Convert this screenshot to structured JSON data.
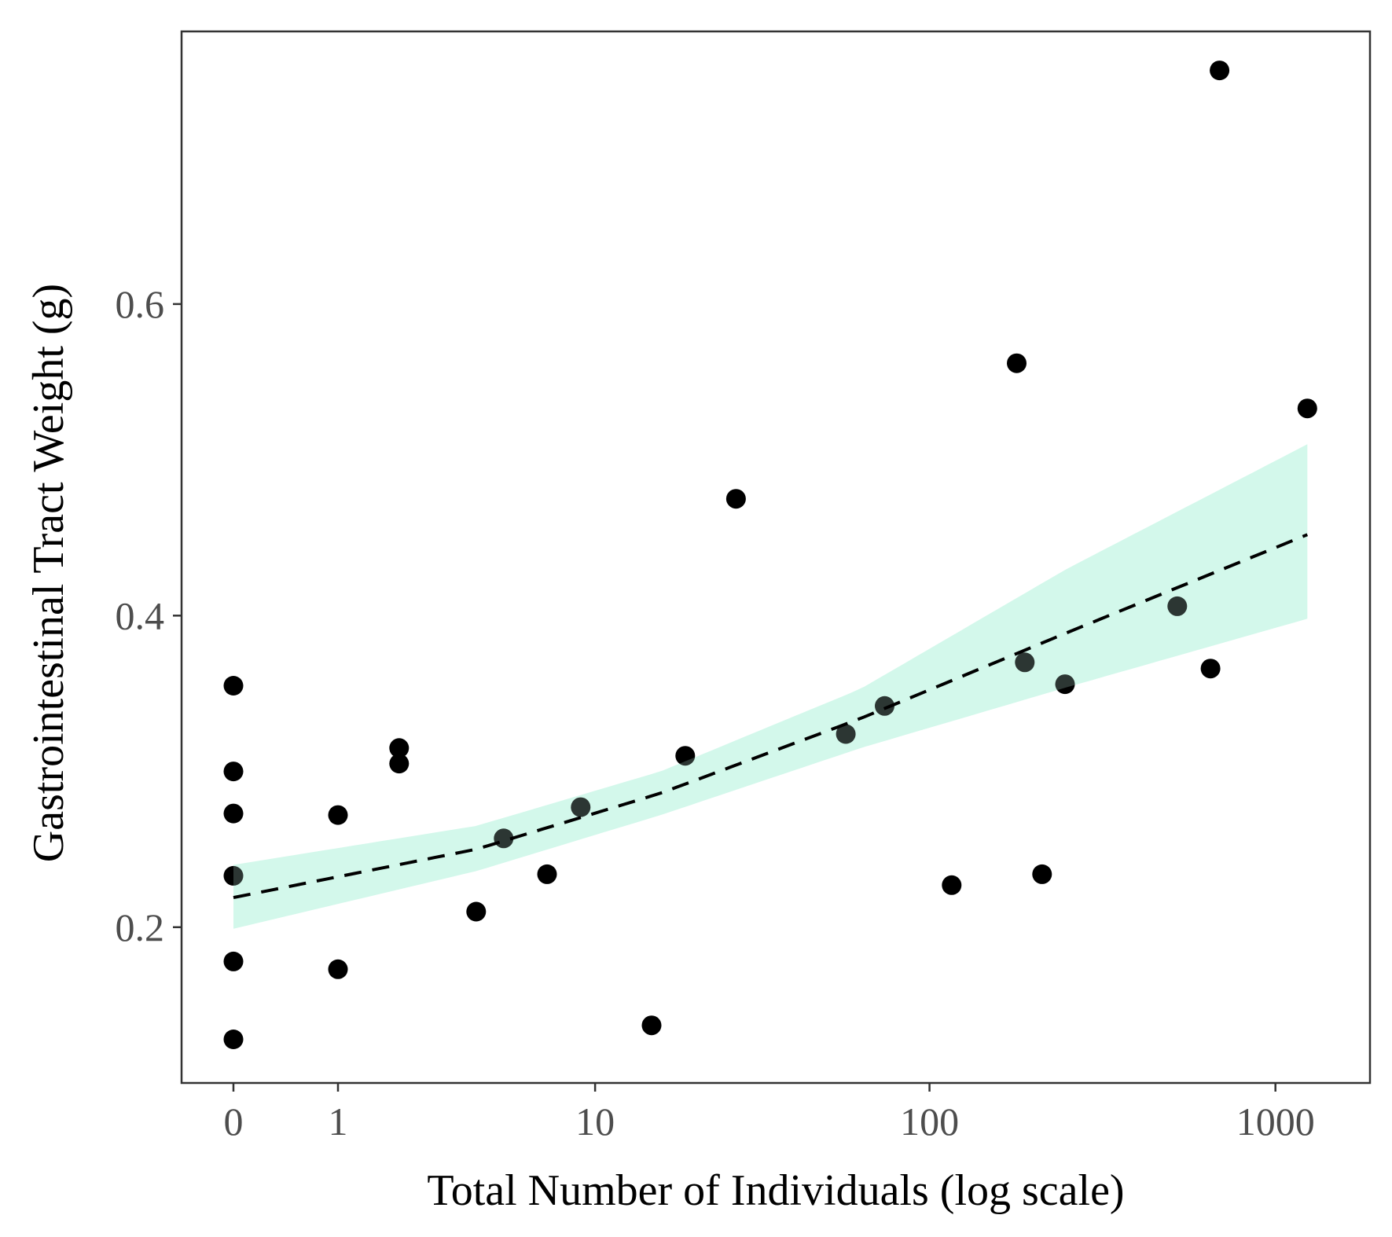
{
  "chart_data": {
    "type": "scatter",
    "title": "",
    "xlabel": "Total Number of Individuals (log scale)",
    "ylabel": "Gastrointestinal Tract Weight (g)",
    "x_scale": "log1p",
    "xlim": [
      0,
      1300
    ],
    "ylim": [
      0.1,
      0.775
    ],
    "x_ticks": [
      {
        "value": 0,
        "label": "0"
      },
      {
        "value": 1,
        "label": "1"
      },
      {
        "value": 10,
        "label": "10"
      },
      {
        "value": 100,
        "label": "100"
      },
      {
        "value": 1000,
        "label": "1000"
      }
    ],
    "y_ticks": [
      {
        "value": 0.2,
        "label": "0.2"
      },
      {
        "value": 0.4,
        "label": "0.4"
      },
      {
        "value": 0.6,
        "label": "0.6"
      }
    ],
    "grid": false,
    "legend": "none",
    "points": [
      {
        "x": 0,
        "y": 0.355
      },
      {
        "x": 0,
        "y": 0.3
      },
      {
        "x": 0,
        "y": 0.273
      },
      {
        "x": 0,
        "y": 0.233
      },
      {
        "x": 0,
        "y": 0.178
      },
      {
        "x": 0,
        "y": 0.128
      },
      {
        "x": 1,
        "y": 0.272
      },
      {
        "x": 1,
        "y": 0.173
      },
      {
        "x": 2,
        "y": 0.315
      },
      {
        "x": 2,
        "y": 0.305
      },
      {
        "x": 4,
        "y": 0.21
      },
      {
        "x": 5,
        "y": 0.257
      },
      {
        "x": 7,
        "y": 0.234
      },
      {
        "x": 9,
        "y": 0.277
      },
      {
        "x": 15,
        "y": 0.137
      },
      {
        "x": 19,
        "y": 0.31
      },
      {
        "x": 27,
        "y": 0.475
      },
      {
        "x": 57,
        "y": 0.324
      },
      {
        "x": 74,
        "y": 0.342
      },
      {
        "x": 116,
        "y": 0.227
      },
      {
        "x": 179,
        "y": 0.562
      },
      {
        "x": 189,
        "y": 0.37
      },
      {
        "x": 212,
        "y": 0.234
      },
      {
        "x": 247,
        "y": 0.356
      },
      {
        "x": 521,
        "y": 0.406
      },
      {
        "x": 650,
        "y": 0.366
      },
      {
        "x": 690,
        "y": 0.75
      },
      {
        "x": 1236,
        "y": 0.533
      }
    ],
    "fit": {
      "style": "dashed",
      "line": [
        {
          "x": 0,
          "y": 0.219
        },
        {
          "x": 4,
          "y": 0.25
        },
        {
          "x": 16,
          "y": 0.286
        },
        {
          "x": 63,
          "y": 0.334
        },
        {
          "x": 250,
          "y": 0.389
        },
        {
          "x": 1236,
          "y": 0.452
        }
      ],
      "band_upper": [
        {
          "x": 0,
          "y": 0.24
        },
        {
          "x": 4,
          "y": 0.265
        },
        {
          "x": 16,
          "y": 0.3
        },
        {
          "x": 63,
          "y": 0.353
        },
        {
          "x": 250,
          "y": 0.43
        },
        {
          "x": 1236,
          "y": 0.51
        }
      ],
      "band_lower": [
        {
          "x": 0,
          "y": 0.199
        },
        {
          "x": 4,
          "y": 0.236
        },
        {
          "x": 16,
          "y": 0.272
        },
        {
          "x": 63,
          "y": 0.315
        },
        {
          "x": 250,
          "y": 0.354
        },
        {
          "x": 1236,
          "y": 0.398
        }
      ]
    },
    "colors": {
      "points": "#000000",
      "band": "#c8f7e6",
      "line": "#000000",
      "axis": "#333333",
      "tick_label": "#4d4d4d"
    }
  }
}
